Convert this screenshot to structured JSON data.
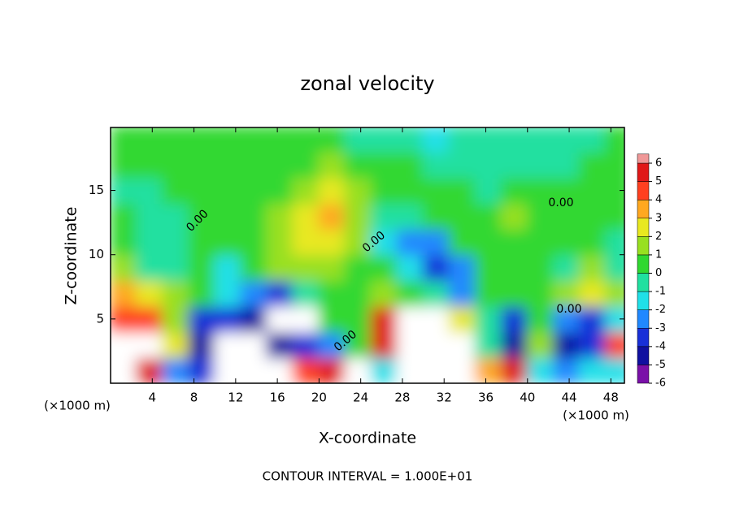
{
  "chart_data": {
    "type": "contour",
    "title": "zonal velocity",
    "x_label": "X-coordinate",
    "y_label": "Z-coordinate",
    "x_unit": "(×1000 m)",
    "footer": "CONTOUR INTERVAL = 1.000E+01",
    "contour_label": "0.00",
    "xlim": [
      0,
      49.3
    ],
    "ylim": [
      0,
      19.9
    ],
    "xticks": [
      4,
      8,
      12,
      16,
      20,
      24,
      28,
      32,
      36,
      40,
      44,
      48
    ],
    "yticks": [
      5,
      10,
      15
    ],
    "x": [
      1.25,
      3.75,
      6.25,
      8.75,
      11.25,
      13.75,
      16.25,
      18.75,
      21.25,
      23.75,
      26.25,
      28.75,
      31.25,
      33.75,
      36.25,
      38.75,
      41.25,
      43.75,
      46.25,
      48.75
    ],
    "z": [
      1,
      3,
      5,
      7,
      9,
      11,
      13,
      15,
      17,
      19
    ],
    "values": [
      [
        7,
        5,
        -3,
        -4,
        7,
        7,
        7,
        4,
        5,
        6,
        -2,
        7,
        7,
        7,
        3,
        5,
        -2,
        -3,
        -2,
        -2
      ],
      [
        7,
        6,
        2,
        -5,
        7,
        7,
        -5,
        -4,
        -3,
        0,
        5,
        7,
        7,
        7,
        -1,
        -5,
        1,
        -5,
        -4,
        4
      ],
      [
        4,
        4,
        1,
        -4,
        -4,
        -5,
        7,
        7,
        0,
        0,
        5,
        6,
        6,
        2,
        -1,
        -4,
        0,
        -3,
        -4,
        -2
      ],
      [
        3,
        2,
        1,
        0,
        -2,
        -3,
        -4,
        -1,
        0,
        0,
        1,
        0,
        -1,
        -3,
        0,
        0,
        0,
        1,
        2,
        1
      ],
      [
        1,
        -1,
        -1,
        0,
        -2,
        0,
        1,
        1,
        1,
        0,
        0,
        -2,
        -4,
        -3,
        0,
        0,
        0,
        -1,
        1,
        -1
      ],
      [
        0,
        -1,
        -1,
        0,
        0,
        0,
        1,
        2,
        2,
        1,
        -2,
        -3,
        -3,
        0,
        0,
        0,
        0,
        0,
        0,
        -1
      ],
      [
        0,
        -1,
        -1,
        0,
        0,
        0,
        1,
        2,
        3,
        1,
        -1,
        -1,
        0,
        0,
        0,
        1,
        0,
        0,
        0,
        0
      ],
      [
        -1,
        -1,
        0,
        0,
        0,
        0,
        0,
        1,
        2,
        1,
        0,
        0,
        0,
        0,
        -1,
        0,
        0,
        0,
        0,
        0
      ],
      [
        0,
        0,
        0,
        0,
        0,
        0,
        0,
        0,
        1,
        0,
        0,
        0,
        -1,
        -1,
        -1,
        -1,
        -1,
        -1,
        0,
        0
      ],
      [
        0,
        0,
        0,
        0,
        0,
        0,
        0,
        0,
        0,
        -1,
        -1,
        -1,
        -2,
        -1,
        -1,
        -1,
        -1,
        -1,
        -1,
        0
      ]
    ],
    "colorbar_ticks": [
      -6,
      -5,
      -4,
      -3,
      -2,
      -1,
      0,
      1,
      2,
      3,
      4,
      5,
      6
    ],
    "colors": [
      "#7a10a8",
      "#1010a0",
      "#1830d8",
      "#2088ff",
      "#20e0e8",
      "#20e0a0",
      "#30d830",
      "#98e020",
      "#e8e820",
      "#ffa820",
      "#ff4020",
      "#e01818",
      "#f09898"
    ],
    "over_color": "#ffffff"
  }
}
